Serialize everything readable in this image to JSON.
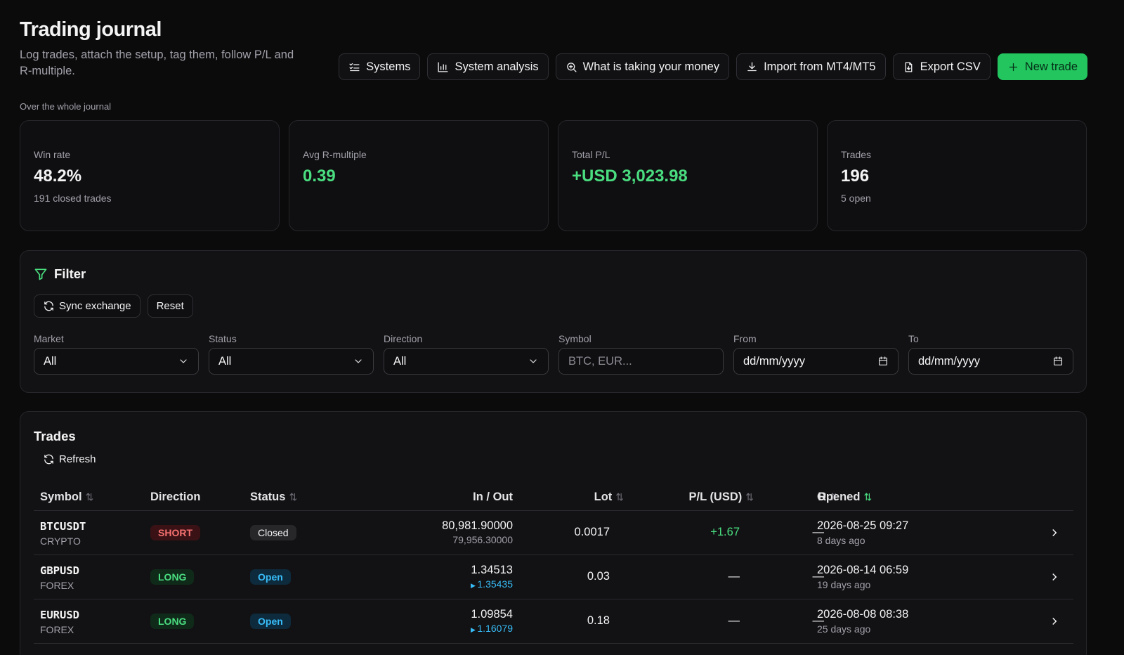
{
  "header": {
    "title": "Trading journal",
    "subtitle": "Log trades, attach the setup, tag them, follow P/L and R-multiple.",
    "actions": [
      {
        "label": "Systems",
        "icon": "checklist-icon"
      },
      {
        "label": "System analysis",
        "icon": "bar-chart-icon"
      },
      {
        "label": "What is taking your money",
        "icon": "search-zoom-icon"
      },
      {
        "label": "Import from MT4/MT5",
        "icon": "download-icon"
      },
      {
        "label": "Export CSV",
        "icon": "file-icon"
      },
      {
        "label": "New trade",
        "icon": "plus-icon"
      }
    ]
  },
  "summary": {
    "caption": "Over the whole journal",
    "stats": [
      {
        "label": "Win rate",
        "value": "48.2%",
        "sub": "191 closed trades"
      },
      {
        "label": "Avg R-multiple",
        "value": "0.39",
        "sub": ""
      },
      {
        "label": "Total P/L",
        "value": "+USD 3,023.98",
        "sub": ""
      },
      {
        "label": "Trades",
        "value": "196",
        "sub": "5 open"
      }
    ]
  },
  "filter": {
    "title": "Filter",
    "sync_label": "Sync exchange",
    "reset_label": "Reset",
    "fields": [
      {
        "label": "Market",
        "value": "All"
      },
      {
        "label": "Status",
        "value": "All"
      },
      {
        "label": "Direction",
        "value": "All"
      },
      {
        "label": "Symbol",
        "placeholder": "BTC, EUR..."
      },
      {
        "label": "From",
        "placeholder": "dd/mm/yyyy"
      },
      {
        "label": "To",
        "placeholder": "dd/mm/yyyy"
      }
    ]
  },
  "trades": {
    "title": "Trades",
    "refresh_label": "Refresh",
    "columns": [
      "Symbol",
      "Direction",
      "Status",
      "In / Out",
      "Lot",
      "P/L (USD)",
      "R",
      "Opened"
    ],
    "rows": [
      {
        "symbol": "BTCUSDT",
        "market": "CRYPTO",
        "direction": "SHORT",
        "status": "Closed",
        "in": "80,981.90000",
        "out": "79,956.30000",
        "lot": "0.0017",
        "pl": "+1.67",
        "r": "—",
        "opened": "2026-08-25 09:27",
        "ago": "8 days ago"
      },
      {
        "symbol": "GBPUSD",
        "market": "FOREX",
        "direction": "LONG",
        "status": "Open",
        "in": "1.34513",
        "out": "1.35435",
        "lot": "0.03",
        "pl": "—",
        "r": "—",
        "opened": "2026-08-14 06:59",
        "ago": "19 days ago"
      },
      {
        "symbol": "EURUSD",
        "market": "FOREX",
        "direction": "LONG",
        "status": "Open",
        "in": "1.09854",
        "out": "1.16079",
        "lot": "0.18",
        "pl": "—",
        "r": "—",
        "opened": "2026-08-08 08:38",
        "ago": "25 days ago"
      }
    ]
  },
  "colors": {
    "accent": "#22c55e",
    "profit": "#4ade80",
    "loss": "#f87171",
    "live": "#38bdf8",
    "background": "#0b0b0c"
  }
}
